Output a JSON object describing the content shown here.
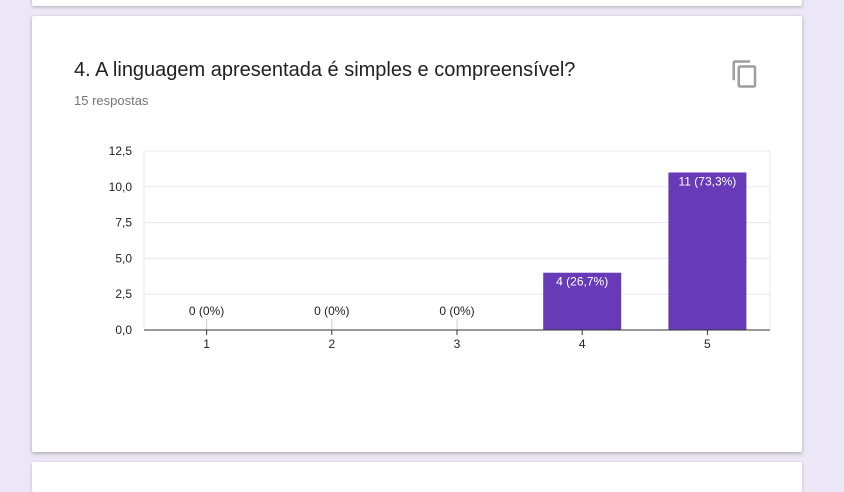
{
  "question": {
    "title": "4. A linguagem apresentada é simples e compreensível?",
    "responses": "15 respostas"
  },
  "icons": {
    "copy": "copy-icon"
  },
  "colors": {
    "bar": "#673ab7",
    "background": "#ece7f6"
  },
  "chart_data": {
    "type": "bar",
    "categories": [
      "1",
      "2",
      "3",
      "4",
      "5"
    ],
    "values": [
      0,
      0,
      0,
      4,
      11
    ],
    "data_labels": [
      "0 (0%)",
      "0 (0%)",
      "0 (0%)",
      "4 (26,7%)",
      "11 (73,3%)"
    ],
    "y_ticks": [
      "0,0",
      "2,5",
      "5,0",
      "7,5",
      "10,0",
      "12,5"
    ],
    "ylim": [
      0,
      12.5
    ],
    "grid": true,
    "legend": "none"
  }
}
